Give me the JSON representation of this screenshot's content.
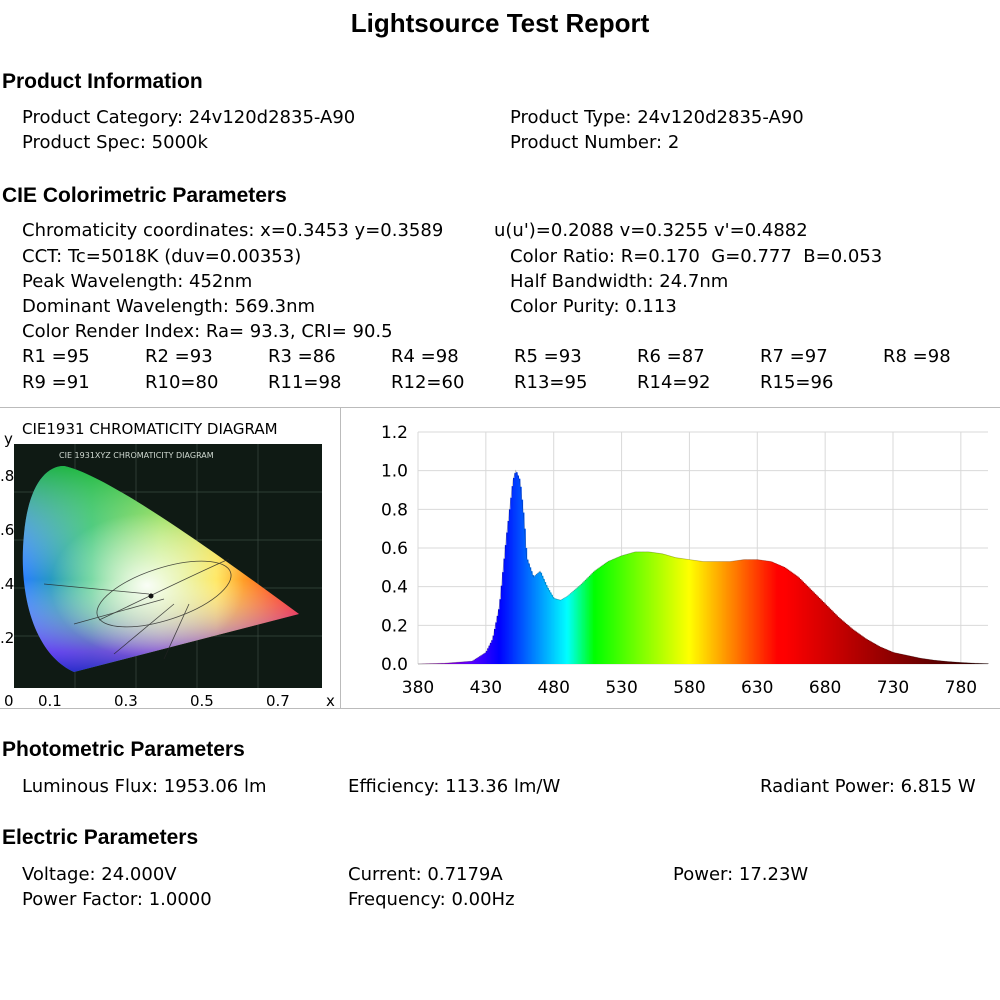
{
  "title": "Lightsource Test Report",
  "product": {
    "heading": "Product Information",
    "category": "Product Category: 24v120d2835-A90",
    "type": "Product Type: 24v120d2835-A90",
    "spec": "Product Spec: 5000k",
    "number": "Product Number: 2"
  },
  "cie": {
    "heading": "CIE Colorimetric Parameters",
    "chromaticity": "Chromaticity coordinates: x=0.3453 y=0.3589",
    "uv": "u(u')=0.2088 v=0.3255 v'=0.4882",
    "cct": "CCT: Tc=5018K (duv=0.00353)",
    "color_ratio": "Color Ratio: R=0.170  G=0.777  B=0.053",
    "peak": "Peak Wavelength: 452nm",
    "half_bw": "Half Bandwidth: 24.7nm",
    "dominant": "Dominant Wavelength: 569.3nm",
    "purity": "Color Purity: 0.113",
    "cri": "Color Render Index: Ra= 93.3, CRI= 90.5",
    "r_values": [
      "R1 =95",
      "R2 =93",
      "R3 =86",
      "R4 =98",
      "R5 =93",
      "R6 =87",
      "R7 =97",
      "R8 =98",
      "R9 =91",
      "R10=80",
      "R11=98",
      "R12=60",
      "R13=95",
      "R14=92",
      "R15=96"
    ]
  },
  "cie_diagram": {
    "title": "CIE1931 CHROMATICITY DIAGRAM",
    "inner_title": "CIE 1931XYZ CHROMATICITY DIAGRAM",
    "y_label": "y",
    "x_label": "x",
    "y_ticks": [
      ".8",
      ".6",
      ".4",
      ".2",
      "0"
    ],
    "x_ticks": [
      "0.1",
      "0.3",
      "0.5",
      "0.7"
    ]
  },
  "chart_data": {
    "type": "area",
    "title": "",
    "xlabel": "",
    "ylabel": "",
    "xlim": [
      380,
      800
    ],
    "ylim": [
      0,
      1.2
    ],
    "x_ticks": [
      380,
      430,
      480,
      530,
      580,
      630,
      680,
      730,
      780
    ],
    "y_ticks": [
      "0.0",
      "0.2",
      "0.4",
      "0.6",
      "0.8",
      "1.0",
      "1.2"
    ],
    "grid": true,
    "x": [
      380,
      400,
      420,
      430,
      435,
      440,
      445,
      450,
      452,
      455,
      458,
      460,
      465,
      470,
      475,
      480,
      485,
      490,
      500,
      510,
      520,
      530,
      540,
      550,
      560,
      570,
      580,
      590,
      600,
      610,
      620,
      630,
      640,
      650,
      660,
      670,
      680,
      690,
      700,
      710,
      720,
      730,
      740,
      750,
      760,
      770,
      780,
      790,
      800
    ],
    "values": [
      0,
      0.004,
      0.015,
      0.06,
      0.13,
      0.3,
      0.65,
      0.95,
      1.0,
      0.95,
      0.75,
      0.55,
      0.45,
      0.48,
      0.4,
      0.34,
      0.33,
      0.35,
      0.41,
      0.48,
      0.53,
      0.56,
      0.58,
      0.58,
      0.57,
      0.55,
      0.54,
      0.53,
      0.53,
      0.53,
      0.54,
      0.54,
      0.53,
      0.5,
      0.45,
      0.38,
      0.31,
      0.24,
      0.18,
      0.13,
      0.09,
      0.06,
      0.045,
      0.03,
      0.02,
      0.013,
      0.008,
      0.004,
      0.002
    ]
  },
  "photometric": {
    "heading": "Photometric Parameters",
    "flux": "Luminous Flux: 1953.06 lm",
    "efficiency": "Efficiency: 113.36 lm/W",
    "radiant": "Radiant Power: 6.815 W"
  },
  "electric": {
    "heading": "Electric Parameters",
    "voltage": "Voltage: 24.000V",
    "current": "Current: 0.7179A",
    "power": "Power: 17.23W",
    "pf": "Power Factor: 1.0000",
    "frequency": "Frequency: 0.00Hz"
  }
}
